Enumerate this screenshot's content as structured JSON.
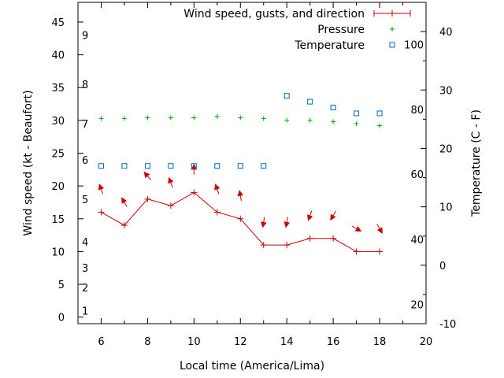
{
  "chart_data": {
    "type": "line",
    "xlabel": "Local time (America/Lima)",
    "ylabel": "Wind speed (kt - Beaufort)",
    "y2label": "Temperature (C - F)",
    "xlim": [
      5,
      20
    ],
    "ylim": [
      -1,
      48
    ],
    "y2lim": [
      -10,
      45
    ],
    "xticks": [
      6,
      8,
      10,
      12,
      14,
      16,
      18,
      20
    ],
    "yticks": [
      0,
      5,
      10,
      15,
      20,
      25,
      30,
      35,
      40,
      45
    ],
    "y2ticks": [
      -10,
      0,
      10,
      20,
      30,
      40
    ],
    "beaufort_ticks": [
      {
        "label": "1",
        "y": 1
      },
      {
        "label": "2",
        "y": 4.5
      },
      {
        "label": "3",
        "y": 7.5
      },
      {
        "label": "4",
        "y": 11.5
      },
      {
        "label": "5",
        "y": 18
      },
      {
        "label": "6",
        "y": 24
      },
      {
        "label": "7",
        "y": 29.5
      },
      {
        "label": "8",
        "y": 35.5
      },
      {
        "label": "9",
        "y": 43
      }
    ],
    "fahrenheit_ticks": [
      {
        "label": "20",
        "y": -6.7
      },
      {
        "label": "40",
        "y": 4.4
      },
      {
        "label": "60",
        "y": 15.6
      },
      {
        "label": "80",
        "y": 26.7
      },
      {
        "label": "100",
        "y": 37.8
      }
    ],
    "series": [
      {
        "name": "Wind speed, gusts, and direction",
        "color": "#cc0000",
        "x": [
          6,
          7,
          8,
          9,
          10,
          11,
          12,
          13,
          14,
          15,
          16,
          17,
          18
        ],
        "values": [
          16,
          14,
          18,
          17,
          19,
          16,
          15,
          11,
          11,
          12,
          12,
          10,
          10
        ],
        "direction_deg": [
          160,
          150,
          140,
          160,
          180,
          160,
          170,
          10,
          10,
          20,
          30,
          300,
          330
        ]
      },
      {
        "name": "Pressure",
        "color": "#00aa00",
        "x": [
          6,
          7,
          8,
          9,
          10,
          11,
          12,
          13,
          14,
          15,
          16,
          17,
          18
        ],
        "values": [
          30.3,
          30.3,
          30.4,
          30.4,
          30.4,
          30.6,
          30.4,
          30.3,
          30.0,
          30.0,
          29.8,
          29.5,
          29.2
        ]
      },
      {
        "name": "Temperature",
        "color": "#0066cc",
        "x": [
          6,
          7,
          8,
          9,
          10,
          11,
          12,
          13,
          14,
          15,
          16,
          17,
          18
        ],
        "values": [
          17,
          17,
          17,
          17,
          17,
          17,
          17,
          17,
          29,
          28,
          27,
          26,
          26
        ]
      }
    ]
  }
}
